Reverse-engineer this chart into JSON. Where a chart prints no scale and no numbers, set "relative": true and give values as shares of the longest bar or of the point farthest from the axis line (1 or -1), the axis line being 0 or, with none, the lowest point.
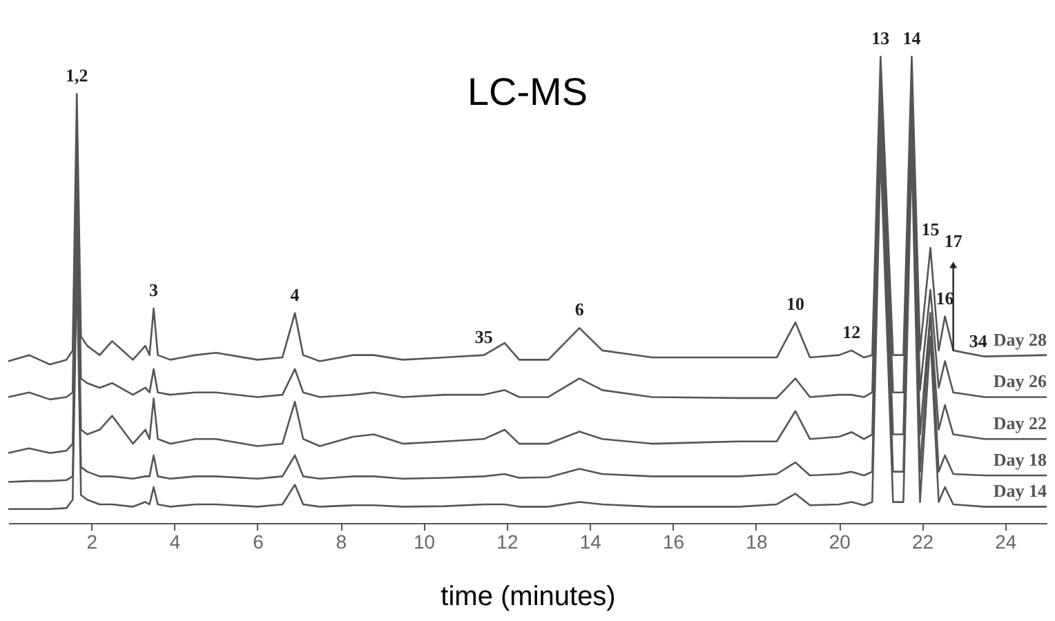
{
  "chart_data": {
    "type": "line",
    "title": "LC-MS",
    "xlabel": "time (minutes)",
    "relative": true,
    "legend": false,
    "grid": false,
    "marker": "none",
    "line_style": "solid",
    "x": [
      0,
      0.5,
      1,
      1.4,
      1.55,
      1.65,
      1.75,
      1.9,
      2.2,
      2.5,
      3.0,
      3.3,
      3.4,
      3.5,
      3.6,
      3.9,
      4.5,
      5.0,
      6.0,
      6.6,
      6.9,
      7.1,
      7.5,
      8.3,
      8.8,
      9.5,
      10.5,
      11.45,
      11.95,
      12.3,
      13.0,
      13.75,
      14.3,
      15.5,
      17.6,
      18.5,
      18.95,
      19.3,
      20.0,
      20.3,
      20.6,
      20.8,
      21.0,
      21.3,
      21.55,
      21.75,
      21.95,
      22.2,
      22.4,
      22.55,
      22.75,
      23.5,
      25
    ],
    "xlim": [
      0,
      25
    ],
    "xticks": [
      2,
      4,
      6,
      8,
      10,
      12,
      14,
      16,
      18,
      20,
      22,
      24
    ],
    "series": [
      {
        "name": "Day 28",
        "color": "#555555",
        "values": [
          0.347,
          0.36,
          0.34,
          0.35,
          0.37,
          0.92,
          0.4,
          0.38,
          0.36,
          0.39,
          0.35,
          0.38,
          0.36,
          0.46,
          0.36,
          0.35,
          0.36,
          0.365,
          0.35,
          0.355,
          0.45,
          0.36,
          0.347,
          0.36,
          0.36,
          0.35,
          0.355,
          0.36,
          0.386,
          0.35,
          0.35,
          0.418,
          0.37,
          0.355,
          0.355,
          0.355,
          0.43,
          0.355,
          0.36,
          0.37,
          0.355,
          0.36,
          1.0,
          0.36,
          0.36,
          1.0,
          0.37,
          0.59,
          0.37,
          0.443,
          0.37,
          0.357,
          0.36
        ]
      },
      {
        "name": "Day 26",
        "color": "#555555",
        "values": [
          0.27,
          0.28,
          0.265,
          0.27,
          0.28,
          0.8,
          0.31,
          0.3,
          0.29,
          0.3,
          0.275,
          0.29,
          0.28,
          0.33,
          0.28,
          0.275,
          0.28,
          0.28,
          0.27,
          0.275,
          0.33,
          0.28,
          0.27,
          0.275,
          0.28,
          0.27,
          0.275,
          0.275,
          0.285,
          0.27,
          0.27,
          0.31,
          0.285,
          0.27,
          0.268,
          0.268,
          0.31,
          0.27,
          0.275,
          0.275,
          0.27,
          0.28,
          0.95,
          0.28,
          0.28,
          0.95,
          0.285,
          0.5,
          0.29,
          0.347,
          0.28,
          0.27,
          0.27
        ]
      },
      {
        "name": "Day 22",
        "color": "#555555",
        "values": [
          0.15,
          0.16,
          0.15,
          0.155,
          0.17,
          0.7,
          0.2,
          0.19,
          0.2,
          0.23,
          0.17,
          0.2,
          0.18,
          0.267,
          0.18,
          0.17,
          0.18,
          0.18,
          0.165,
          0.17,
          0.26,
          0.18,
          0.165,
          0.185,
          0.19,
          0.17,
          0.175,
          0.18,
          0.2,
          0.17,
          0.17,
          0.196,
          0.18,
          0.17,
          0.175,
          0.175,
          0.24,
          0.18,
          0.185,
          0.195,
          0.18,
          0.19,
          0.9,
          0.19,
          0.19,
          0.9,
          0.19,
          0.45,
          0.2,
          0.253,
          0.19,
          0.18,
          0.18
        ]
      },
      {
        "name": "Day 18",
        "color": "#555555",
        "values": [
          0.088,
          0.09,
          0.09,
          0.092,
          0.1,
          0.6,
          0.12,
          0.11,
          0.1,
          0.1,
          0.095,
          0.1,
          0.1,
          0.145,
          0.1,
          0.095,
          0.1,
          0.1,
          0.095,
          0.1,
          0.145,
          0.1,
          0.095,
          0.1,
          0.1,
          0.095,
          0.097,
          0.1,
          0.105,
          0.097,
          0.098,
          0.116,
          0.105,
          0.1,
          0.1,
          0.105,
          0.13,
          0.102,
          0.105,
          0.11,
          0.102,
          0.11,
          0.85,
          0.11,
          0.11,
          0.85,
          0.11,
          0.45,
          0.11,
          0.145,
          0.105,
          0.102,
          0.102
        ]
      },
      {
        "name": "Day 14",
        "color": "#555555",
        "values": [
          0.03,
          0.03,
          0.03,
          0.032,
          0.05,
          0.55,
          0.06,
          0.05,
          0.04,
          0.04,
          0.035,
          0.045,
          0.04,
          0.077,
          0.04,
          0.035,
          0.04,
          0.04,
          0.035,
          0.04,
          0.082,
          0.04,
          0.035,
          0.038,
          0.038,
          0.035,
          0.036,
          0.04,
          0.04,
          0.035,
          0.035,
          0.045,
          0.04,
          0.035,
          0.035,
          0.04,
          0.063,
          0.038,
          0.04,
          0.045,
          0.038,
          0.045,
          0.8,
          0.045,
          0.045,
          0.8,
          0.045,
          0.4,
          0.045,
          0.077,
          0.04,
          0.035,
          0.035
        ]
      }
    ],
    "annotations": [
      {
        "text": "1,2",
        "x": 1.65,
        "y": 0.92
      },
      {
        "text": "3",
        "x": 3.5,
        "y": 0.46
      },
      {
        "text": "4",
        "x": 6.9,
        "y": 0.45
      },
      {
        "text": "35",
        "x": 11.45,
        "y": 0.36
      },
      {
        "text": "6",
        "x": 13.75,
        "y": 0.418
      },
      {
        "text": "10",
        "x": 18.95,
        "y": 0.43
      },
      {
        "text": "12",
        "x": 20.3,
        "y": 0.37
      },
      {
        "text": "13",
        "x": 21.0,
        "y": 1.0
      },
      {
        "text": "14",
        "x": 21.75,
        "y": 1.0
      },
      {
        "text": "15",
        "x": 22.2,
        "y": 0.59
      },
      {
        "text": "16",
        "x": 22.55,
        "y": 0.443
      },
      {
        "text": "17",
        "x": 22.75,
        "y": 0.37
      },
      {
        "text": "34",
        "x": 23.0,
        "y": 0.357
      }
    ]
  }
}
